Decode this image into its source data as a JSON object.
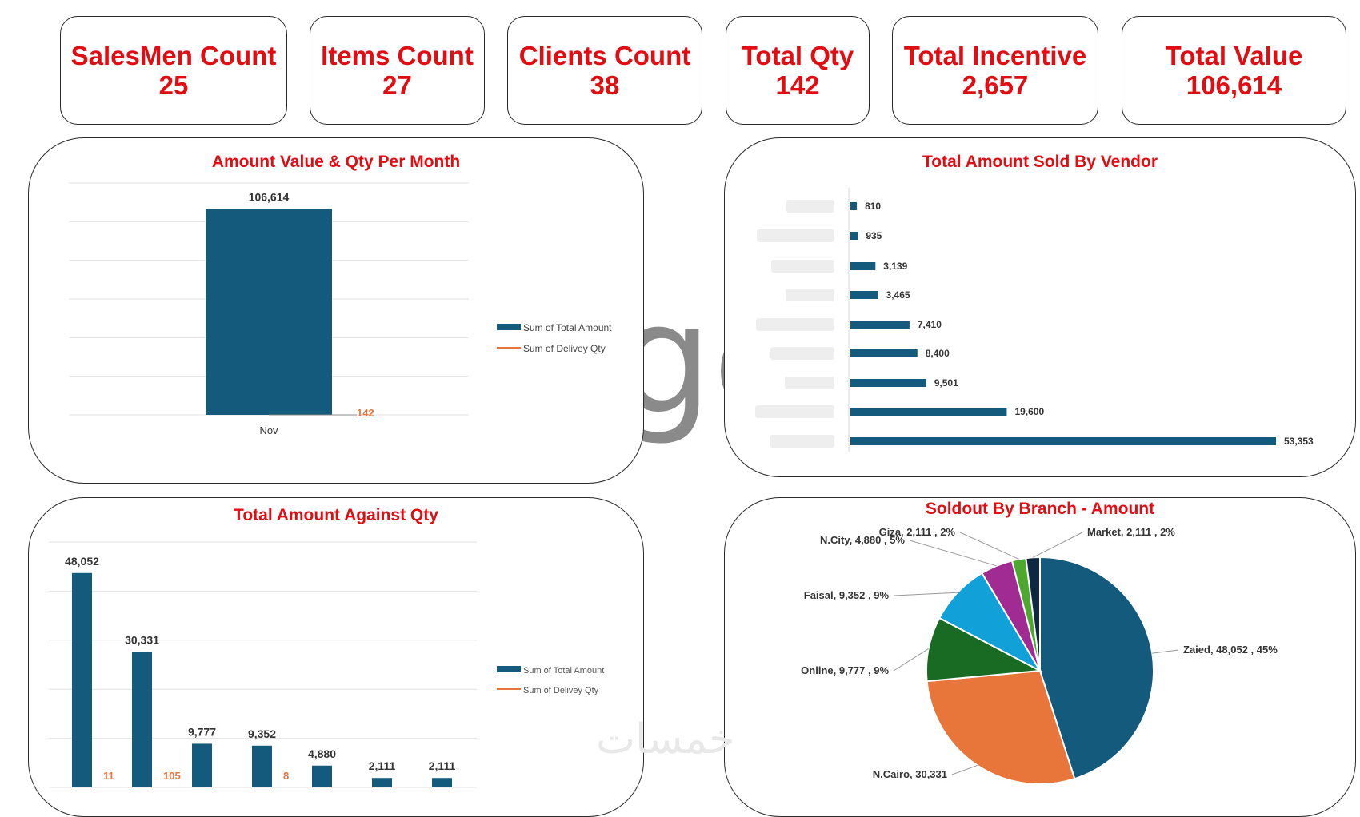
{
  "kpis": [
    {
      "label": "SalesMen Count",
      "value": "25"
    },
    {
      "label": "Items Count",
      "value": "27"
    },
    {
      "label": "Clients Count",
      "value": "38"
    },
    {
      "label": "Total Qty",
      "value": "142"
    },
    {
      "label": "Total Incentive",
      "value": "2,657"
    },
    {
      "label": "Total Value",
      "value": "106,614"
    }
  ],
  "panels": {
    "month": {
      "title": "Amount Value & Qty Per Month"
    },
    "vendor": {
      "title": "Total Amount Sold By Vendor"
    },
    "qty": {
      "title": "Total Amount Against Qty"
    },
    "branch": {
      "title": "Soldout By Branch - Amount"
    }
  },
  "watermark": {
    "text": "ge",
    "bottom": "خمسات"
  },
  "colors": {
    "bar": "#145a7c",
    "line": "#e8763a",
    "title": "#e00d12"
  },
  "chart_data": [
    {
      "id": "month",
      "type": "bar",
      "title": "Amount Value & Qty Per Month",
      "categories": [
        "Nov"
      ],
      "series": [
        {
          "name": "Sum of Total Amount",
          "values": [
            106614
          ],
          "labels": [
            "106,614"
          ]
        },
        {
          "name": "Sum of Delivey Qty",
          "values": [
            142
          ],
          "labels": [
            "142"
          ]
        }
      ],
      "ylim": [
        0,
        120000
      ],
      "grid": true,
      "legend": "right"
    },
    {
      "id": "vendor",
      "type": "bar",
      "orientation": "horizontal",
      "title": "Total Amount Sold By Vendor",
      "categories": [
        "",
        "",
        "",
        "",
        "",
        "",
        "",
        "",
        ""
      ],
      "values": [
        810,
        935,
        3139,
        3465,
        7410,
        8400,
        9501,
        19600,
        53353
      ],
      "labels": [
        "810",
        "935",
        "3,139",
        "3,465",
        "7,410",
        "8,400",
        "9,501",
        "19,600",
        "53,353"
      ]
    },
    {
      "id": "qty",
      "type": "bar",
      "title": "Total Amount Against Qty",
      "series": [
        {
          "name": "Sum of Total Amount",
          "values": [
            48052,
            30331,
            9777,
            9352,
            4880,
            2111,
            2111
          ],
          "labels": [
            "48,052",
            "30,331",
            "9,777",
            "9,352",
            "4,880",
            "2,111",
            "2,111"
          ]
        },
        {
          "name": "Sum of Delivey Qty",
          "values": [
            11,
            105,
            null,
            8,
            null,
            null,
            null
          ],
          "labels": [
            "11",
            "105",
            "",
            "8",
            "",
            "",
            ""
          ]
        }
      ],
      "ylim": [
        0,
        55000
      ],
      "grid": true,
      "legend": "right"
    },
    {
      "id": "branch",
      "type": "pie",
      "title": "Soldout By Branch - Amount",
      "slices": [
        {
          "label": "Zaied, 48,052 , 45%",
          "value": 48052,
          "color": "#145a7c"
        },
        {
          "label": "N.Cairo, 30,331",
          "value": 30331,
          "color": "#e8763a"
        },
        {
          "label": "Online, 9,777 , 9%",
          "value": 9777,
          "color": "#196b24"
        },
        {
          "label": "Faisal, 9,352 , 9%",
          "value": 9352,
          "color": "#11a0d8"
        },
        {
          "label": "N.City, 4,880 , 5%",
          "value": 4880,
          "color": "#a02b93"
        },
        {
          "label": "Giza, 2,111 , 2%",
          "value": 2111,
          "color": "#4ea72e"
        },
        {
          "label": "Market, 2,111 , 2%",
          "value": 2111,
          "color": "#0e2841"
        }
      ]
    }
  ]
}
